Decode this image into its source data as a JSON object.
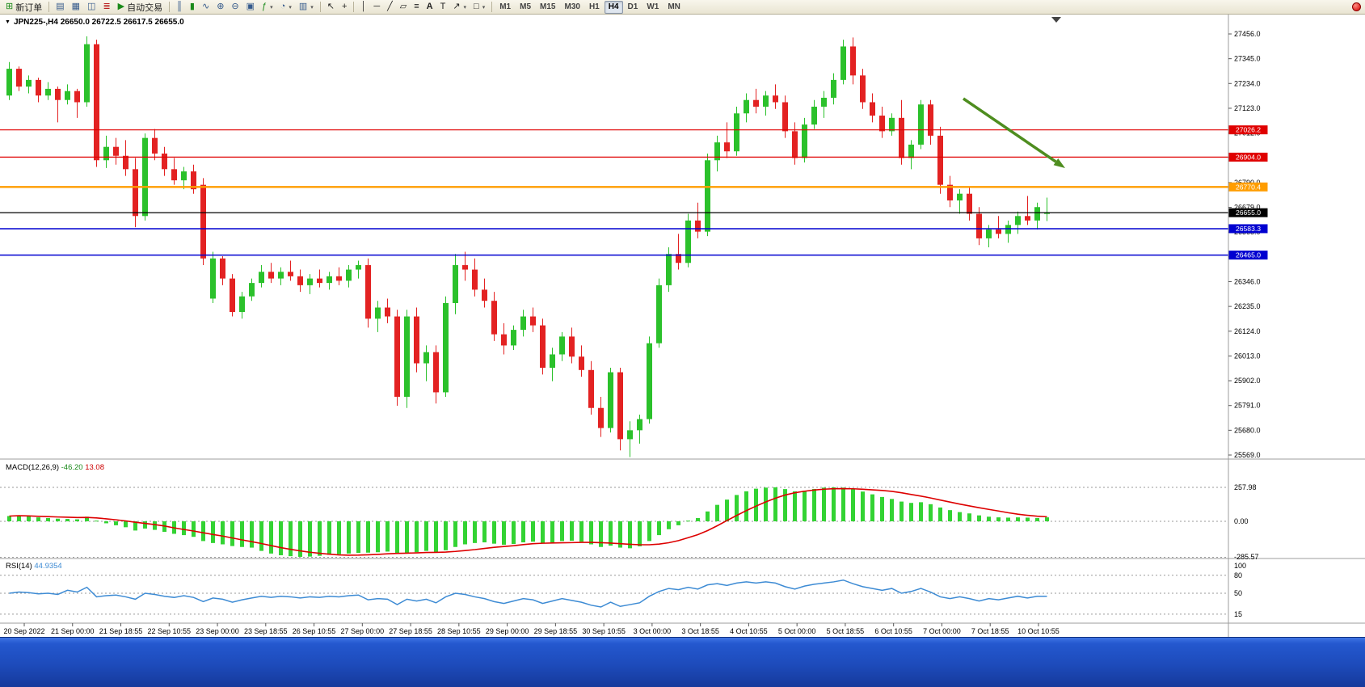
{
  "toolbar": {
    "new_order": "新订单",
    "auto_trading": "自动交易",
    "active_timeframe": "H4",
    "timeframes": [
      "M1",
      "M5",
      "M15",
      "M30",
      "H1",
      "H4",
      "D1",
      "W1",
      "MN"
    ],
    "icons": {
      "new_order": "⊞",
      "profile": "▤",
      "market_watch": "▦",
      "navigator": "◫",
      "terminal": "≣",
      "autoplay": "▶",
      "bar_chart": "║",
      "candle_chart": "▮",
      "line_chart": "∿",
      "zoom_in": "⊕",
      "zoom_out": "⊖",
      "tile_windows": "▣",
      "indicators": "ƒ",
      "periods": "◔",
      "templates": "▥",
      "caret": "▾",
      "cursor": "↖",
      "crosshair": "+",
      "vline": "│",
      "hline": "─",
      "trendline": "╱",
      "channel": "▱",
      "fibonacci": "≡",
      "text_tool": "A",
      "label_tool": "T",
      "arrows_tool": "↗",
      "shapes_tool": "□"
    }
  },
  "chart": {
    "title": "JPN225-,H4 26650.0 26722.5 26617.5 26655.0"
  },
  "chart_data": {
    "type": "candlestick",
    "symbol": "JPN225-",
    "period": "H4",
    "ohlc_display": {
      "open": "26650.0",
      "high": "26722.5",
      "low": "26617.5",
      "close": "26655.0"
    },
    "colors": {
      "up": "#2bc12b",
      "down": "#e32222",
      "macd_hist": "#33d333",
      "macd_signal": "#dd0000",
      "rsi_line": "#3d8bd4",
      "arrow": "#4e8d1f"
    },
    "y_axis_ticks": [
      "27456.0",
      "27345.0",
      "27234.0",
      "27123.0",
      "27012.0",
      "26901.0",
      "26790.0",
      "26679.0",
      "26568.0",
      "26457.0",
      "26346.0",
      "26235.0",
      "26124.0",
      "26013.0",
      "25902.0",
      "25791.0",
      "25680.0",
      "25569.0"
    ],
    "levels": [
      {
        "price": 27026.2,
        "label": "27026.2",
        "color": "#e00000",
        "width": 1.2
      },
      {
        "price": 26904.0,
        "label": "26904.0",
        "color": "#e00000",
        "width": 1.2
      },
      {
        "price": 26770.4,
        "label": "26770.4",
        "color": "#ff9d00",
        "width": 2.4
      },
      {
        "price": 26655.0,
        "label": "26655.0",
        "color": "#000000",
        "width": 1.2
      },
      {
        "price": 26583.3,
        "label": "26583.3",
        "color": "#0000d0",
        "width": 1.5
      },
      {
        "price": 26465.0,
        "label": "26465.0",
        "color": "#0000d0",
        "width": 1.5
      }
    ],
    "arrow": {
      "from": [
        1192,
        122
      ],
      "to": [
        1318,
        208
      ]
    },
    "time_labels": [
      "20 Sep 2022",
      "21 Sep 00:00",
      "21 Sep 18:55",
      "22 Sep 10:55",
      "23 Sep 00:00",
      "23 Sep 18:55",
      "26 Sep 10:55",
      "27 Sep 00:00",
      "27 Sep 18:55",
      "28 Sep 10:55",
      "29 Sep 00:00",
      "29 Sep 18:55",
      "30 Sep 10:55",
      "3 Oct 00:00",
      "3 Oct 18:55",
      "4 Oct 10:55",
      "5 Oct 00:00",
      "5 Oct 18:55",
      "6 Oct 10:55",
      "7 Oct 00:00",
      "7 Oct 18:55",
      "10 Oct 10:55"
    ],
    "candles": [
      [
        27180,
        27330,
        27160,
        27300
      ],
      [
        27300,
        27310,
        27200,
        27220
      ],
      [
        27220,
        27270,
        27190,
        27250
      ],
      [
        27250,
        27260,
        27150,
        27180
      ],
      [
        27180,
        27240,
        27160,
        27210
      ],
      [
        27210,
        27220,
        27060,
        27160
      ],
      [
        27160,
        27230,
        27140,
        27200
      ],
      [
        27200,
        27210,
        27080,
        27150
      ],
      [
        27150,
        27445,
        27130,
        27410
      ],
      [
        27410,
        27430,
        26860,
        26890
      ],
      [
        26890,
        27000,
        26855,
        26950
      ],
      [
        26950,
        26990,
        26870,
        26910
      ],
      [
        26910,
        26980,
        26820,
        26850
      ],
      [
        26850,
        26900,
        26590,
        26640
      ],
      [
        26640,
        27010,
        26620,
        26990
      ],
      [
        26990,
        27030,
        26890,
        26920
      ],
      [
        26920,
        26950,
        26820,
        26850
      ],
      [
        26850,
        26900,
        26780,
        26800
      ],
      [
        26800,
        26860,
        26760,
        26840
      ],
      [
        26840,
        26870,
        26740,
        26760
      ],
      [
        26780,
        26810,
        26420,
        26450
      ],
      [
        26270,
        26480,
        26250,
        26450
      ],
      [
        26450,
        26460,
        26330,
        26360
      ],
      [
        26360,
        26380,
        26190,
        26210
      ],
      [
        26210,
        26300,
        26180,
        26280
      ],
      [
        26280,
        26360,
        26260,
        26340
      ],
      [
        26340,
        26420,
        26320,
        26390
      ],
      [
        26390,
        26430,
        26340,
        26360
      ],
      [
        26360,
        26410,
        26330,
        26390
      ],
      [
        26390,
        26440,
        26350,
        26370
      ],
      [
        26370,
        26400,
        26300,
        26330
      ],
      [
        26330,
        26380,
        26290,
        26360
      ],
      [
        26360,
        26400,
        26320,
        26340
      ],
      [
        26340,
        26390,
        26310,
        26370
      ],
      [
        26370,
        26410,
        26330,
        26350
      ],
      [
        26350,
        26420,
        26320,
        26400
      ],
      [
        26400,
        26440,
        26360,
        26420
      ],
      [
        26420,
        26450,
        26140,
        26180
      ],
      [
        26180,
        26260,
        26120,
        26230
      ],
      [
        26230,
        26270,
        26160,
        26190
      ],
      [
        26190,
        26220,
        25790,
        25830
      ],
      [
        25830,
        26220,
        25780,
        26190
      ],
      [
        26190,
        26230,
        25940,
        25980
      ],
      [
        25980,
        26060,
        25900,
        26030
      ],
      [
        26030,
        26060,
        25800,
        25850
      ],
      [
        25850,
        26280,
        25830,
        26250
      ],
      [
        26250,
        26470,
        26200,
        26420
      ],
      [
        26420,
        26480,
        26350,
        26400
      ],
      [
        26400,
        26450,
        26280,
        26310
      ],
      [
        26310,
        26360,
        26230,
        26260
      ],
      [
        26260,
        26300,
        26080,
        26110
      ],
      [
        26110,
        26160,
        26020,
        26060
      ],
      [
        26060,
        26150,
        26040,
        26130
      ],
      [
        26130,
        26220,
        26100,
        26190
      ],
      [
        26190,
        26230,
        26120,
        26150
      ],
      [
        26150,
        26180,
        25930,
        25960
      ],
      [
        25960,
        26050,
        25900,
        26020
      ],
      [
        26020,
        26120,
        25990,
        26100
      ],
      [
        26100,
        26140,
        25980,
        26010
      ],
      [
        26010,
        26060,
        25920,
        25950
      ],
      [
        25950,
        25990,
        25750,
        25780
      ],
      [
        25780,
        25830,
        25650,
        25690
      ],
      [
        25690,
        25960,
        25670,
        25940
      ],
      [
        25940,
        25960,
        25590,
        25640
      ],
      [
        25640,
        25720,
        25560,
        25680
      ],
      [
        25680,
        25750,
        25620,
        25730
      ],
      [
        25730,
        26100,
        25710,
        26070
      ],
      [
        26070,
        26360,
        26050,
        26330
      ],
      [
        26330,
        26500,
        26300,
        26470
      ],
      [
        26470,
        26560,
        26400,
        26430
      ],
      [
        26430,
        26650,
        26410,
        26620
      ],
      [
        26620,
        26700,
        26540,
        26570
      ],
      [
        26570,
        26920,
        26550,
        26890
      ],
      [
        26890,
        27000,
        26840,
        26970
      ],
      [
        26970,
        27060,
        26900,
        26930
      ],
      [
        26930,
        27130,
        26910,
        27100
      ],
      [
        27100,
        27190,
        27060,
        27160
      ],
      [
        27160,
        27210,
        27100,
        27130
      ],
      [
        27130,
        27200,
        27090,
        27180
      ],
      [
        27180,
        27230,
        27120,
        27150
      ],
      [
        27150,
        27180,
        26990,
        27020
      ],
      [
        27020,
        27060,
        26870,
        26900
      ],
      [
        26900,
        27080,
        26880,
        27050
      ],
      [
        27050,
        27160,
        27030,
        27130
      ],
      [
        27130,
        27200,
        27080,
        27170
      ],
      [
        27170,
        27280,
        27140,
        27250
      ],
      [
        27250,
        27430,
        27230,
        27400
      ],
      [
        27400,
        27440,
        27230,
        27270
      ],
      [
        27270,
        27300,
        27120,
        27150
      ],
      [
        27150,
        27190,
        27060,
        27090
      ],
      [
        27090,
        27130,
        26990,
        27020
      ],
      [
        27020,
        27100,
        27000,
        27080
      ],
      [
        27080,
        27160,
        26870,
        26900
      ],
      [
        26900,
        26980,
        26850,
        26960
      ],
      [
        26960,
        27160,
        26940,
        27140
      ],
      [
        27140,
        27160,
        26960,
        27000
      ],
      [
        27000,
        27040,
        26740,
        26780
      ],
      [
        26780,
        26820,
        26680,
        26710
      ],
      [
        26710,
        26760,
        26650,
        26740
      ],
      [
        26740,
        26770,
        26620,
        26650
      ],
      [
        26650,
        26680,
        26510,
        26540
      ],
      [
        26540,
        26600,
        26500,
        26580
      ],
      [
        26580,
        26640,
        26540,
        26560
      ],
      [
        26560,
        26620,
        26520,
        26600
      ],
      [
        26600,
        26660,
        26560,
        26640
      ],
      [
        26640,
        26730,
        26600,
        26620
      ],
      [
        26620,
        26700,
        26580,
        26680
      ],
      [
        26650,
        26722.5,
        26617.5,
        26655
      ]
    ],
    "macd": {
      "label": "MACD(12,26,9)",
      "value_main": "-46.20",
      "value_signal": "13.08",
      "axis": [
        "257.98",
        "0.00",
        "-285.57"
      ],
      "hist": [
        40,
        45,
        38,
        30,
        25,
        20,
        18,
        15,
        35,
        5,
        -15,
        -30,
        -45,
        -70,
        -55,
        -65,
        -80,
        -95,
        -105,
        -118,
        -150,
        -165,
        -175,
        -188,
        -195,
        -200,
        -225,
        -245,
        -258,
        -265,
        -270,
        -268,
        -262,
        -255,
        -250,
        -245,
        -240,
        -238,
        -235,
        -230,
        -240,
        -245,
        -235,
        -225,
        -235,
        -220,
        -195,
        -175,
        -165,
        -160,
        -170,
        -178,
        -172,
        -160,
        -155,
        -165,
        -160,
        -150,
        -148,
        -155,
        -175,
        -195,
        -185,
        -200,
        -205,
        -190,
        -150,
        -105,
        -60,
        -30,
        5,
        25,
        75,
        125,
        165,
        200,
        228,
        248,
        256,
        258,
        245,
        228,
        232,
        246,
        256,
        258,
        256,
        246,
        226,
        205,
        185,
        170,
        150,
        140,
        145,
        130,
        105,
        85,
        70,
        60,
        45,
        35,
        30,
        28,
        30,
        28,
        25,
        30
      ]
    },
    "rsi": {
      "label": "RSI(14)",
      "value": "44.9354",
      "axis": [
        "100",
        "80",
        "50",
        "15"
      ],
      "levels": [
        80,
        50,
        15
      ],
      "values": [
        50,
        52,
        51,
        49,
        50,
        48,
        55,
        52,
        60,
        44,
        46,
        47,
        44,
        40,
        50,
        48,
        45,
        43,
        46,
        43,
        36,
        42,
        40,
        35,
        39,
        42,
        45,
        43,
        45,
        44,
        42,
        44,
        43,
        45,
        44,
        46,
        47,
        39,
        41,
        40,
        31,
        40,
        37,
        40,
        34,
        44,
        50,
        48,
        44,
        41,
        36,
        33,
        37,
        41,
        39,
        33,
        37,
        41,
        38,
        35,
        30,
        27,
        35,
        28,
        31,
        34,
        45,
        53,
        58,
        56,
        60,
        57,
        64,
        66,
        63,
        67,
        69,
        67,
        69,
        67,
        61,
        57,
        62,
        65,
        67,
        69,
        72,
        66,
        61,
        58,
        55,
        58,
        50,
        53,
        58,
        52,
        44,
        41,
        44,
        41,
        37,
        41,
        39,
        42,
        45,
        42,
        45,
        44.9
      ]
    }
  }
}
